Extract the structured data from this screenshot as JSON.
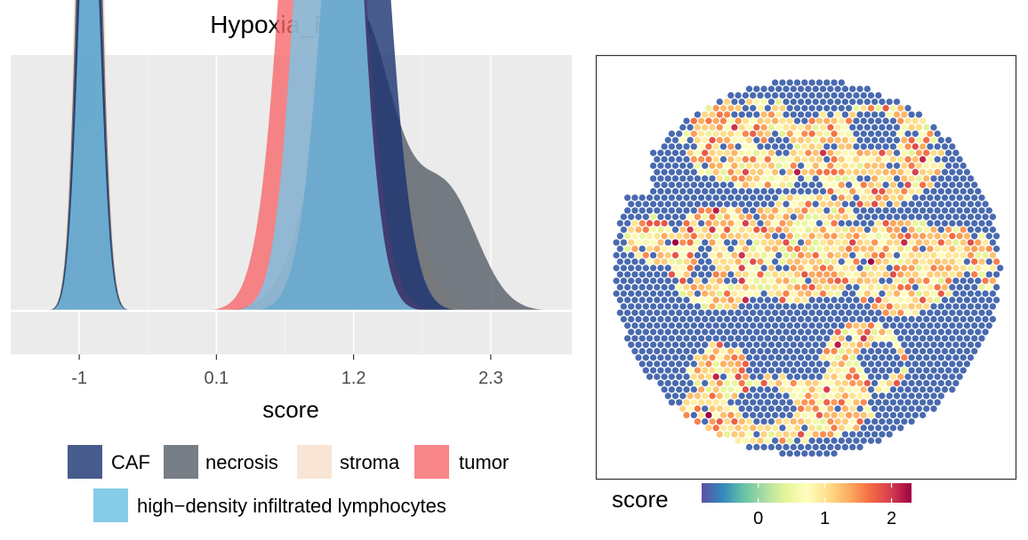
{
  "chart_data": [
    {
      "type": "area",
      "title": "Hypoxia_Buffa",
      "xlabel": "score",
      "ylabel": "",
      "x_ticks": [
        -1,
        0.1,
        1.2,
        2.3
      ],
      "x_tick_labels": [
        "-1",
        "0.1",
        "1.2",
        "2.3"
      ],
      "xlim": [
        -1.55,
        2.95
      ],
      "grid": true,
      "legend_position": "bottom",
      "series": [
        {
          "name": "stroma",
          "color": "#F8DECB",
          "x_range": [
            -1.4,
            2.5
          ],
          "components": [
            {
              "mean": -0.92,
              "sd": 0.085,
              "weight": 0.132
            },
            {
              "mean": 1.36,
              "sd": 0.26,
              "weight": 0.098
            }
          ]
        },
        {
          "name": "necrosis",
          "color": "#565E67",
          "x_range": [
            -1.4,
            2.9
          ],
          "components": [
            {
              "mean": -0.92,
              "sd": 0.085,
              "weight": 0.107
            },
            {
              "mean": 1.22,
              "sd": 0.3,
              "weight": 0.16
            },
            {
              "mean": 1.95,
              "sd": 0.25,
              "weight": 0.05
            }
          ]
        },
        {
          "name": "tumor",
          "color": "#F7686C",
          "x_range": [
            -1.4,
            2.6
          ],
          "components": [
            {
              "mean": -0.92,
              "sd": 0.085,
              "weight": 0.0285
            },
            {
              "mean": 0.95,
              "sd": 0.24,
              "weight": 0.396
            }
          ]
        },
        {
          "name": "CAF",
          "color": "#1A3270",
          "x_range": [
            -1.4,
            2.6
          ],
          "components": [
            {
              "mean": -0.92,
              "sd": 0.085,
              "weight": 0.091
            },
            {
              "mean": 1.22,
              "sd": 0.22,
              "weight": 0.27
            }
          ]
        },
        {
          "name": "high−density infiltrated lymphocytes",
          "color": "#79C5E6",
          "x_range": [
            -1.4,
            2.6
          ],
          "components": [
            {
              "mean": -0.92,
              "sd": 0.085,
              "weight": 0.071
            },
            {
              "mean": 1.0,
              "sd": 0.2,
              "weight": 0.3
            }
          ]
        }
      ],
      "legend": [
        {
          "label": "CAF",
          "color": "#1A3270"
        },
        {
          "label": "necrosis",
          "color": "#565E67"
        },
        {
          "label": "stroma",
          "color": "#F8DECB"
        },
        {
          "label": "tumor",
          "color": "#F7686C"
        },
        {
          "label": "high−density infiltrated lymphocytes",
          "color": "#79C5E6"
        }
      ]
    },
    {
      "type": "scatter",
      "title": "",
      "description_kind": "spatial spot map colored by score",
      "color_scale": {
        "title": "score",
        "palette": "Spectral (reversed)",
        "range": [
          -0.85,
          2.3
        ],
        "tick_values": [
          0,
          1,
          2
        ],
        "tick_labels": [
          "0",
          "1",
          "2"
        ],
        "colors": [
          "#5E4FA2",
          "#3288BD",
          "#66C2A5",
          "#ABDDA4",
          "#E6F598",
          "#FFFFBF",
          "#FEE08B",
          "#FDAE61",
          "#F46D43",
          "#D53E4F",
          "#9E0142"
        ]
      },
      "score_levels": {
        "low": -0.7,
        "high_min": 0.4,
        "high_max": 2.3,
        "high_mean": 1.1,
        "high_sd": 0.42
      }
    }
  ]
}
